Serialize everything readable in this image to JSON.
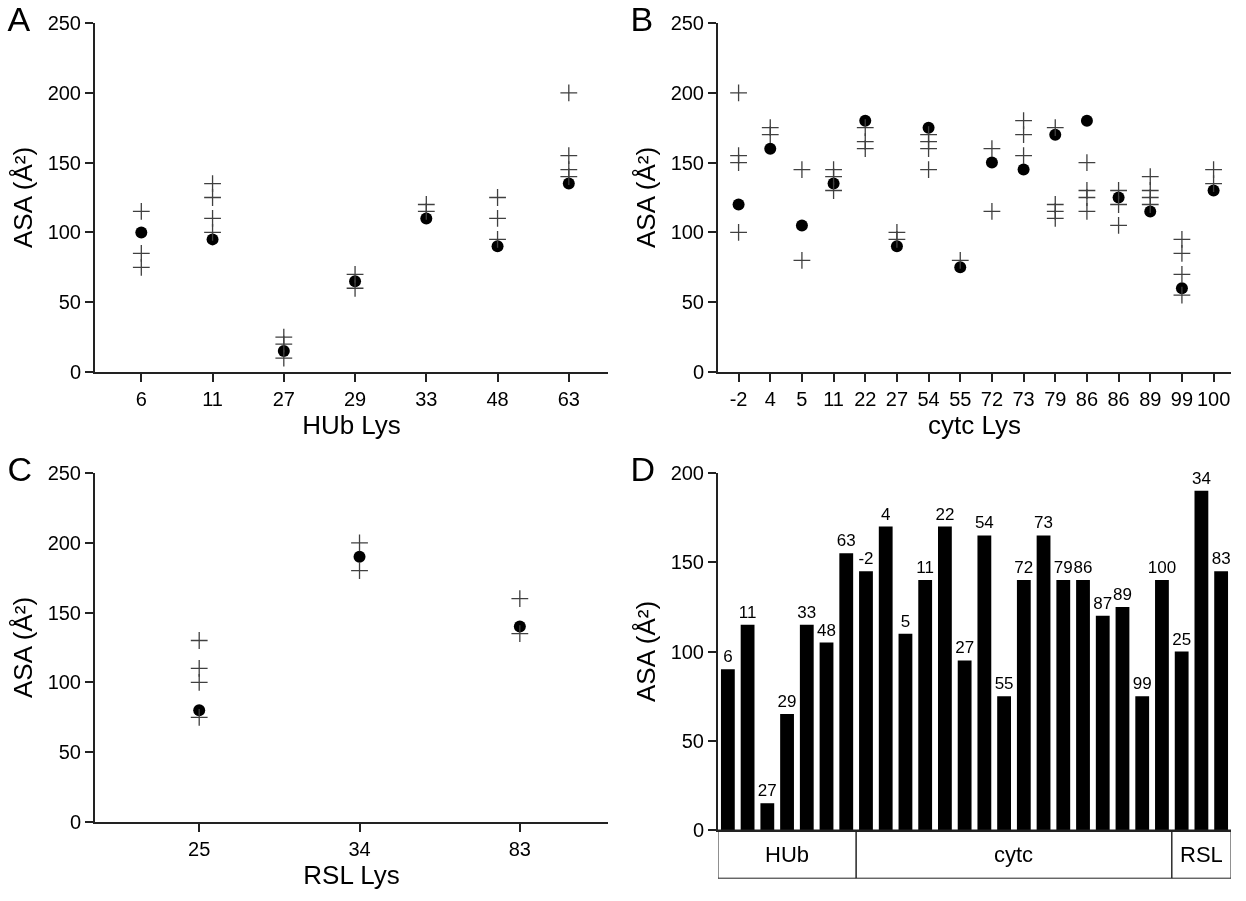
{
  "chart_data": [
    {
      "type": "scatter",
      "title": "A",
      "xlabel": "HUb Lys",
      "ylabel": "ASA (Å²)",
      "categories": [
        "6",
        "11",
        "27",
        "29",
        "33",
        "48",
        "63"
      ],
      "ylim": [
        0,
        250
      ],
      "yticks": [
        0,
        50,
        100,
        150,
        200,
        250
      ],
      "series": [
        {
          "color": "#000000",
          "marker": "circle",
          "values": [
            100,
            95,
            15,
            65,
            110,
            90,
            135
          ]
        },
        {
          "color": "#404040",
          "marker": "cross",
          "values": [
            115,
            135,
            25,
            70,
            120,
            125,
            200
          ]
        },
        {
          "color": "#404040",
          "marker": "cross",
          "values": [
            85,
            125,
            20,
            60,
            115,
            110,
            155
          ]
        },
        {
          "color": "#404040",
          "marker": "cross",
          "values": [
            75,
            110,
            10,
            null,
            null,
            95,
            145
          ]
        },
        {
          "color": "#404040",
          "marker": "cross",
          "values": [
            null,
            100,
            null,
            null,
            null,
            null,
            140
          ]
        }
      ]
    },
    {
      "type": "scatter",
      "title": "B",
      "xlabel": "cytc Lys",
      "ylabel": "ASA (Å²)",
      "categories": [
        "-2",
        "4",
        "5",
        "11",
        "22",
        "27",
        "54",
        "55",
        "72",
        "73",
        "79",
        "86",
        "86",
        "89",
        "99",
        "100"
      ],
      "ylim": [
        0,
        250
      ],
      "yticks": [
        0,
        50,
        100,
        150,
        200,
        250
      ],
      "series": [
        {
          "color": "#000000",
          "marker": "circle",
          "values": [
            120,
            160,
            105,
            135,
            180,
            90,
            175,
            75,
            150,
            145,
            170,
            180,
            125,
            115,
            60,
            130
          ]
        },
        {
          "color": "#404040",
          "marker": "cross",
          "values": [
            200,
            175,
            145,
            145,
            175,
            100,
            170,
            80,
            160,
            180,
            175,
            150,
            130,
            140,
            95,
            145
          ]
        },
        {
          "color": "#404040",
          "marker": "cross",
          "values": [
            155,
            170,
            80,
            140,
            165,
            95,
            165,
            null,
            115,
            170,
            120,
            130,
            120,
            130,
            85,
            135
          ]
        },
        {
          "color": "#404040",
          "marker": "cross",
          "values": [
            150,
            null,
            null,
            130,
            160,
            null,
            160,
            null,
            null,
            155,
            115,
            125,
            105,
            125,
            70,
            null
          ]
        },
        {
          "color": "#404040",
          "marker": "cross",
          "values": [
            100,
            null,
            null,
            null,
            null,
            null,
            145,
            null,
            null,
            null,
            110,
            115,
            null,
            120,
            55,
            null
          ]
        }
      ]
    },
    {
      "type": "scatter",
      "title": "C",
      "xlabel": "RSL Lys",
      "ylabel": "ASA (Å²)",
      "categories": [
        "25",
        "34",
        "83"
      ],
      "ylim": [
        0,
        250
      ],
      "yticks": [
        0,
        50,
        100,
        150,
        200,
        250
      ],
      "series": [
        {
          "color": "#000000",
          "marker": "circle",
          "values": [
            80,
            190,
            140
          ]
        },
        {
          "color": "#404040",
          "marker": "cross",
          "values": [
            130,
            200,
            160
          ]
        },
        {
          "color": "#404040",
          "marker": "cross",
          "values": [
            110,
            180,
            135
          ]
        },
        {
          "color": "#404040",
          "marker": "cross",
          "values": [
            100,
            null,
            null
          ]
        },
        {
          "color": "#404040",
          "marker": "cross",
          "values": [
            75,
            null,
            null
          ]
        }
      ]
    },
    {
      "type": "bar",
      "title": "D",
      "ylabel": "ASA (Å²)",
      "tick_labels": "y",
      "categories": [
        null,
        null,
        null,
        null,
        null,
        null,
        null,
        null,
        null,
        null,
        null,
        null,
        null,
        null,
        null,
        null,
        null,
        null,
        null,
        null,
        null,
        null,
        null,
        null,
        null,
        null
      ],
      "annotations": [
        "6",
        "11",
        "27",
        "29",
        "33",
        "48",
        "63",
        "-2",
        "4",
        "5",
        "11",
        "22",
        "27",
        "54",
        "55",
        "72",
        "73",
        "79",
        "86",
        "87",
        "89",
        "99",
        "100",
        "25",
        "34",
        "83",
        "HUb",
        "cytc",
        "RSL"
      ],
      "ylim": [
        0,
        200
      ],
      "yticks": [
        0,
        50,
        100,
        150,
        200
      ],
      "series": [
        {
          "color": "#000000",
          "values": [
            90,
            115,
            15,
            65,
            115,
            105,
            155,
            145,
            170,
            110,
            140,
            170,
            95,
            165,
            75,
            140,
            165,
            140,
            140,
            120,
            125,
            75,
            140,
            100,
            190,
            145
          ]
        }
      ]
    }
  ]
}
